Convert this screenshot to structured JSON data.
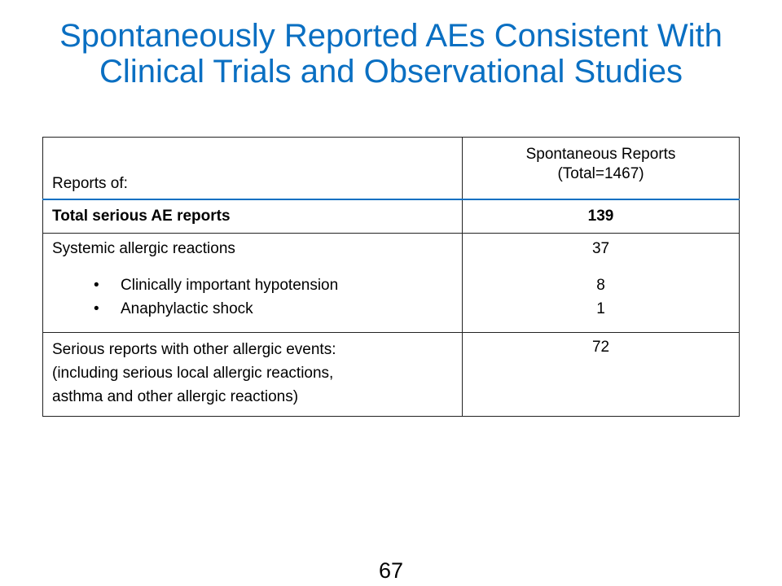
{
  "title": {
    "line1": "Spontaneously Reported AEs Consistent With",
    "line2": "Clinical Trials and Observational Studies"
  },
  "table": {
    "header": {
      "col1": "Reports of:",
      "col2_line1": "Spontaneous Reports",
      "col2_line2": "(Total=1467)"
    },
    "total_row": {
      "label": "Total serious AE reports",
      "value": "139"
    },
    "systemic_row": {
      "label": "Systemic allergic reactions",
      "value": "37",
      "sub_items": [
        {
          "label": "Clinically important hypotension",
          "value": "8"
        },
        {
          "label": "Anaphylactic shock",
          "value": "1"
        }
      ]
    },
    "other_row": {
      "label_line1": "Serious reports with other allergic events:",
      "label_line2": "(including serious local allergic reactions,",
      "label_line3": "asthma and other allergic reactions)",
      "value": "72"
    }
  },
  "page_number": "67",
  "colors": {
    "title": "#0a6fc2",
    "header_rule": "#0a6fc2"
  }
}
